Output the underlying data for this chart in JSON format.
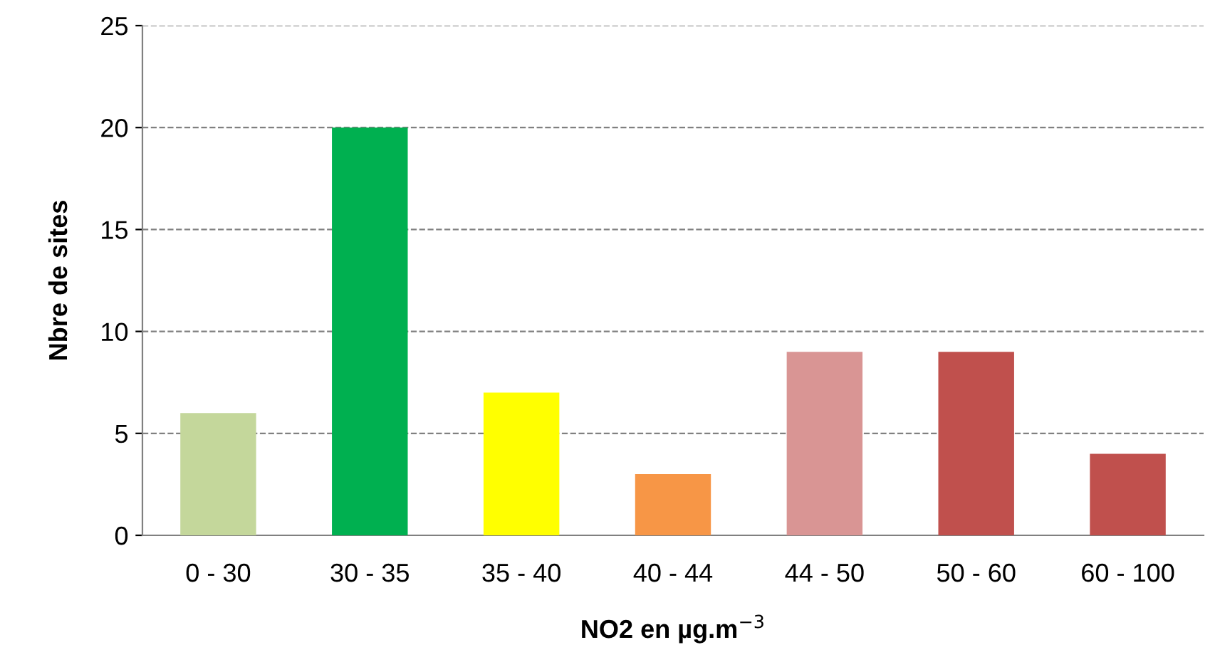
{
  "chart_data": {
    "type": "bar",
    "categories": [
      "0 - 30",
      "30 - 35",
      "35 - 40",
      "40 - 44",
      "44 - 50",
      "50 - 60",
      "60 - 100"
    ],
    "values": [
      6,
      20,
      7,
      3,
      9,
      9,
      4
    ],
    "colors": [
      "#c4d79b",
      "#00b050",
      "#ffff00",
      "#f79646",
      "#d99594",
      "#c0504d",
      "#c0504d"
    ],
    "xlabel": "NO2 en µg.m$^{−3}$",
    "ylabel": "Nbre de sites",
    "ylim": [
      0,
      25
    ],
    "yticks": [
      0,
      5,
      10,
      15,
      20,
      25
    ],
    "grid": "y",
    "line_style": "dashed"
  }
}
